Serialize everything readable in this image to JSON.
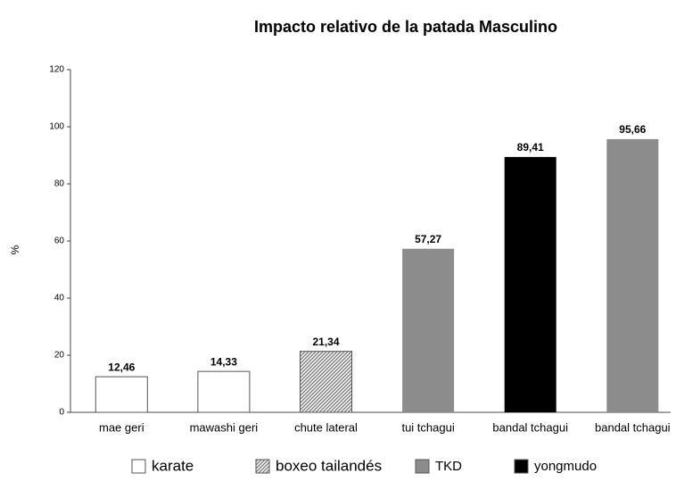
{
  "chart_data": {
    "type": "bar",
    "title": "Impacto relativo de la patada Masculino",
    "y_label": "%",
    "categories": [
      "mae geri",
      "mawashi geri",
      "chute lateral",
      "tui tchagui",
      "bandal tchagui",
      "bandal tchagui"
    ],
    "values": [
      12.46,
      14.33,
      21.34,
      57.27,
      89.41,
      95.66
    ],
    "value_labels": [
      "12,46",
      "14,33",
      "21,34",
      "57,27",
      "89,41",
      "95,66"
    ],
    "colors": [
      "#ffffff",
      "#ffffff",
      "hatch",
      "#8c8c8c",
      "#000000",
      "#8c8c8c"
    ],
    "legend": [
      {
        "name": "karate",
        "color": "#ffffff"
      },
      {
        "name": "boxeo tailandés",
        "color": "hatch"
      },
      {
        "name": "TKD",
        "color": "#8c8c8c"
      },
      {
        "name": "yongmudo",
        "color": "#000000"
      }
    ],
    "ylim": [
      0,
      120
    ],
    "yticks": [
      0,
      20,
      40,
      60,
      80,
      100,
      120
    ],
    "grid": false
  }
}
